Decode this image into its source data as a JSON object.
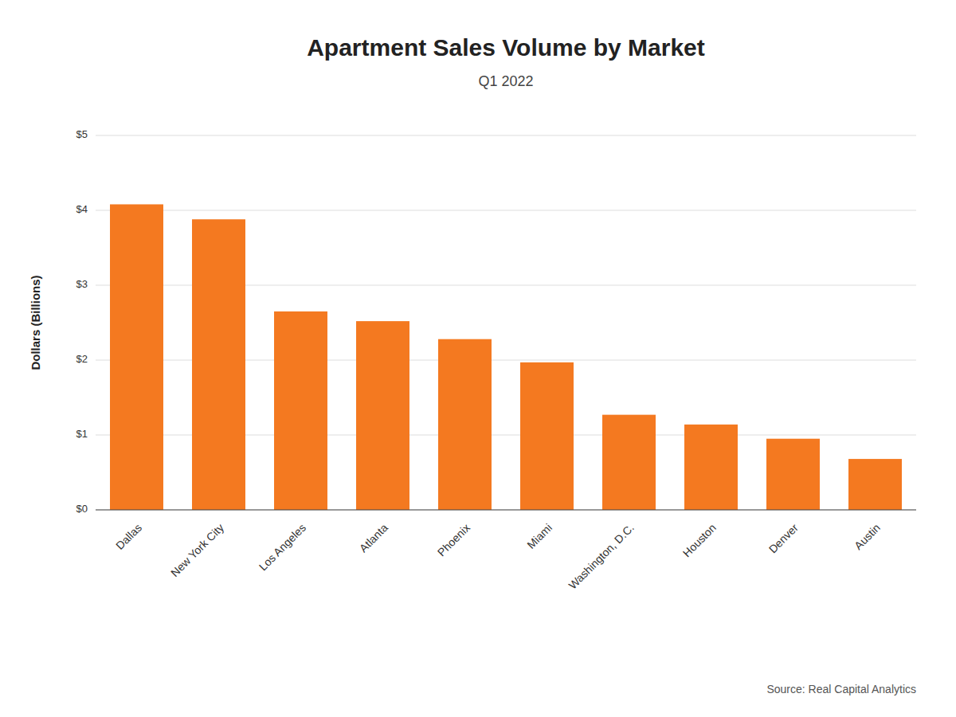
{
  "chart_data": {
    "type": "bar",
    "title": "Apartment Sales Volume by Market",
    "subtitle": "Q1 2022",
    "categories": [
      "Dallas",
      "New York City",
      "Los Angeles",
      "Atlanta",
      "Phoenix",
      "Miami",
      "Washington, D.C.",
      "Houston",
      "Denver",
      "Austin"
    ],
    "values": [
      4.08,
      3.88,
      2.65,
      2.52,
      2.28,
      1.97,
      1.27,
      1.14,
      0.95,
      0.68
    ],
    "color": "#F47920",
    "ylabel": "Dollars (Billions)",
    "ylim": [
      0,
      5
    ],
    "yticks": [
      {
        "value": 0,
        "label": "$0"
      },
      {
        "value": 1,
        "label": "$1"
      },
      {
        "value": 2,
        "label": "$2"
      },
      {
        "value": 3,
        "label": "$3"
      },
      {
        "value": 4,
        "label": "$4"
      },
      {
        "value": 5,
        "label": "$5"
      }
    ],
    "annotations": [
      "Source: Real Capital Analytics"
    ],
    "grid": true
  }
}
